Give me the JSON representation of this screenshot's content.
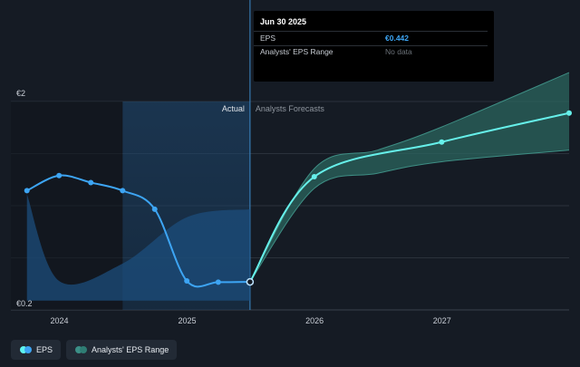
{
  "tooltip": {
    "date": "Jun 30 2025",
    "rows": [
      {
        "label": "EPS",
        "value": "€0.442"
      },
      {
        "label": "Analysts' EPS Range",
        "value": "No data"
      }
    ]
  },
  "legend": [
    {
      "label": "EPS",
      "color": "#3da5f4",
      "color2": "#5ff5f0"
    },
    {
      "label": "Analysts' EPS Range",
      "color": "#2f7d74",
      "color2": "#3b8f86"
    }
  ],
  "colors": {
    "eps_actual": "#3da5f4",
    "eps_forecast": "#66f0ea",
    "range_fill": "#2c6a62",
    "grid": "#2a313b",
    "background": "#151b24"
  },
  "chart_data": {
    "type": "line",
    "ylabels": [
      "€2",
      "€0.2"
    ],
    "ylim": [
      0.2,
      2.0
    ],
    "xlim": [
      "2023-08-15",
      "2027-12-31"
    ],
    "x_ticks": [
      "2024",
      "2025",
      "2026",
      "2027"
    ],
    "section_labels": {
      "actual": "Actual",
      "forecast": "Analysts Forecasts"
    },
    "divider_date": "2025-06-30",
    "grid": true,
    "series": [
      {
        "name": "EPS",
        "role": "actual",
        "points": [
          {
            "x": "2023-09-30",
            "y": 1.23
          },
          {
            "x": "2023-12-31",
            "y": 1.36
          },
          {
            "x": "2024-03-31",
            "y": 1.3
          },
          {
            "x": "2024-06-30",
            "y": 1.23
          },
          {
            "x": "2024-09-30",
            "y": 1.07
          },
          {
            "x": "2024-12-31",
            "y": 0.45
          },
          {
            "x": "2025-03-31",
            "y": 0.44
          },
          {
            "x": "2025-06-30",
            "y": 0.442
          }
        ]
      },
      {
        "name": "EPS",
        "role": "forecast",
        "points": [
          {
            "x": "2025-06-30",
            "y": 0.442
          },
          {
            "x": "2025-12-31",
            "y": 1.35
          },
          {
            "x": "2026-12-31",
            "y": 1.65
          },
          {
            "x": "2027-12-31",
            "y": 1.9
          }
        ]
      }
    ],
    "revenue_band": [
      {
        "x": "2023-09-30",
        "y": 1.2
      },
      {
        "x": "2023-12-31",
        "y": 0.45
      },
      {
        "x": "2024-06-30",
        "y": 0.6
      },
      {
        "x": "2024-12-31",
        "y": 1.0
      },
      {
        "x": "2025-06-30",
        "y": 1.07
      }
    ],
    "range": {
      "upper": [
        {
          "x": "2025-06-30",
          "y": 0.442
        },
        {
          "x": "2025-12-31",
          "y": 1.42
        },
        {
          "x": "2026-06-30",
          "y": 1.58
        },
        {
          "x": "2026-12-31",
          "y": 1.78
        },
        {
          "x": "2027-12-31",
          "y": 2.25
        }
      ],
      "lower": [
        {
          "x": "2025-06-30",
          "y": 0.442
        },
        {
          "x": "2025-12-31",
          "y": 1.25
        },
        {
          "x": "2026-06-30",
          "y": 1.38
        },
        {
          "x": "2026-12-31",
          "y": 1.48
        },
        {
          "x": "2027-12-31",
          "y": 1.58
        }
      ]
    }
  }
}
